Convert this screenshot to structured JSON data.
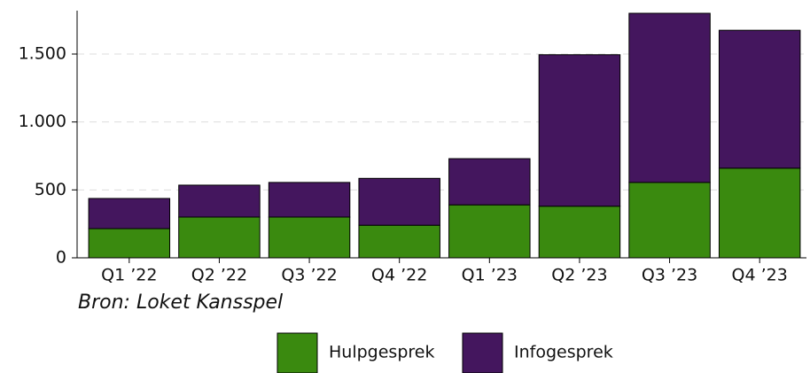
{
  "chart_data": {
    "type": "stacked_bar",
    "categories": [
      "Q1 ’22",
      "Q2 ’22",
      "Q3 ’22",
      "Q4 ’22",
      "Q1 ’23",
      "Q2 ’23",
      "Q3 ’23",
      "Q4 ’23"
    ],
    "series": [
      {
        "name": "Hulpgesprek",
        "color": "#3a8a0f",
        "values": [
          215,
          300,
          300,
          240,
          390,
          380,
          555,
          660
        ]
      },
      {
        "name": "Infogesprek",
        "color": "#44165e",
        "values": [
          222,
          235,
          255,
          345,
          340,
          1115,
          1245,
          1015
        ]
      }
    ],
    "ylim": [
      0,
      1800
    ],
    "yticks": [
      0,
      500,
      {
        "value": 1000,
        "label": "1.000"
      },
      {
        "value": 1500,
        "label": "1.500"
      }
    ],
    "grid": true,
    "source": "Bron: Loket Kansspel",
    "legend": "bottom"
  }
}
